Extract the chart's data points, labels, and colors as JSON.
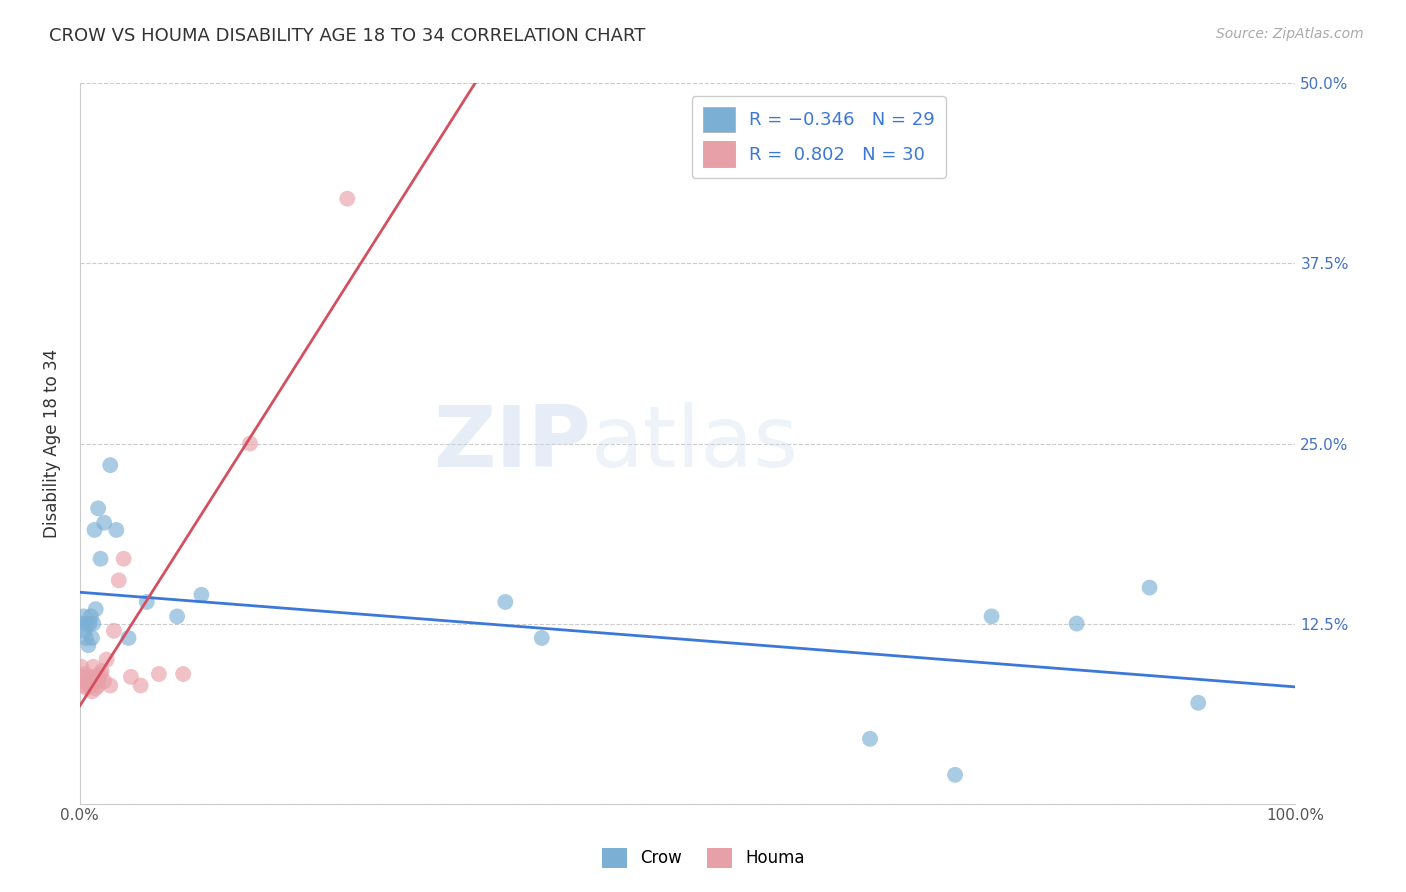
{
  "title": "CROW VS HOUMA DISABILITY AGE 18 TO 34 CORRELATION CHART",
  "source": "Source: ZipAtlas.com",
  "ylabel": "Disability Age 18 to 34",
  "crow_color": "#7bafd4",
  "houma_color": "#e8a0a8",
  "crow_line_color": "#3c78d8",
  "houma_line_color": "#d45060",
  "background_color": "#ffffff",
  "xlim": [
    0.0,
    1.0
  ],
  "ylim": [
    0.0,
    0.5
  ],
  "crow_x": [
    0.002,
    0.003,
    0.004,
    0.005,
    0.006,
    0.007,
    0.008,
    0.009,
    0.01,
    0.011,
    0.012,
    0.013,
    0.015,
    0.017,
    0.02,
    0.025,
    0.03,
    0.04,
    0.055,
    0.08,
    0.1,
    0.35,
    0.38,
    0.65,
    0.72,
    0.75,
    0.82,
    0.88,
    0.92
  ],
  "crow_y": [
    0.125,
    0.13,
    0.12,
    0.115,
    0.125,
    0.11,
    0.125,
    0.13,
    0.115,
    0.125,
    0.19,
    0.135,
    0.205,
    0.17,
    0.195,
    0.235,
    0.19,
    0.115,
    0.14,
    0.13,
    0.145,
    0.14,
    0.115,
    0.045,
    0.02,
    0.13,
    0.125,
    0.15,
    0.07
  ],
  "houma_x": [
    0.001,
    0.002,
    0.003,
    0.004,
    0.005,
    0.006,
    0.007,
    0.008,
    0.009,
    0.01,
    0.011,
    0.012,
    0.013,
    0.014,
    0.015,
    0.016,
    0.017,
    0.018,
    0.02,
    0.022,
    0.025,
    0.028,
    0.032,
    0.036,
    0.042,
    0.05,
    0.065,
    0.085,
    0.14,
    0.22
  ],
  "houma_y": [
    0.095,
    0.088,
    0.082,
    0.09,
    0.085,
    0.08,
    0.082,
    0.088,
    0.082,
    0.078,
    0.095,
    0.088,
    0.08,
    0.085,
    0.082,
    0.088,
    0.09,
    0.092,
    0.085,
    0.1,
    0.082,
    0.12,
    0.155,
    0.17,
    0.088,
    0.082,
    0.09,
    0.09,
    0.25,
    0.42
  ]
}
